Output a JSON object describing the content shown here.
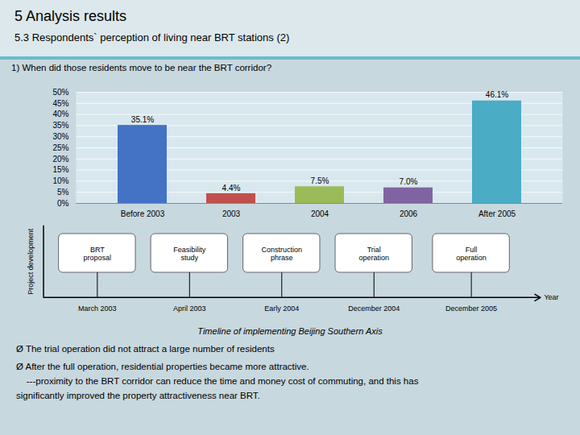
{
  "chart_data": {
    "type": "bar",
    "title": "5 Analysis results",
    "subtitle": "5.3 Respondents` perception of living near BRT stations (2)",
    "categories": [
      "Before 2003",
      "2003",
      "2004",
      "2006",
      "After 2005"
    ],
    "values": [
      35.1,
      4.4,
      7.5,
      7.0,
      46.1
    ],
    "value_labels": [
      "35.1%",
      "4.4%",
      "7.5%",
      "7.0%",
      "46.1%"
    ],
    "data_labels": true,
    "colors": [
      "#4472C4",
      "#C0504D",
      "#9BBB59",
      "#8064A2",
      "#4BACC6"
    ],
    "ylim": [
      0,
      50
    ],
    "yticks": [
      {
        "value": 0,
        "label": "0%"
      },
      {
        "value": 5,
        "label": "5%"
      },
      {
        "value": 10,
        "label": "10%"
      },
      {
        "value": 15,
        "label": "15%"
      },
      {
        "value": 20,
        "label": "20%"
      },
      {
        "value": 25,
        "label": "25%"
      },
      {
        "value": 30,
        "label": "30%"
      },
      {
        "value": 35,
        "label": "35%"
      },
      {
        "value": 40,
        "label": "40%"
      },
      {
        "value": 45,
        "label": "45%"
      },
      {
        "value": 50,
        "label": "50%"
      }
    ],
    "grid": true,
    "annotations": [
      "1) When did those residents move to be near the BRT corridor?",
      "Project development",
      "Year",
      "BRT\nproposal",
      "Feasibility\nstudy",
      "Construction\nphrase",
      "Trial\noperation",
      "Full\noperation",
      "March 2003",
      "April 2003",
      "Early 2004",
      "December 2004",
      "December 2005",
      "Timeline of implementing Beijing Southern Axis",
      "Ø The trial operation did not attract a large number of residents",
      "Ø After the full operation, residential properties became more attractive.",
      "    ---proximity to the BRT corridor can reduce the time and money cost of commuting, and this has",
      "significantly improved the property attractiveness near BRT."
    ]
  }
}
